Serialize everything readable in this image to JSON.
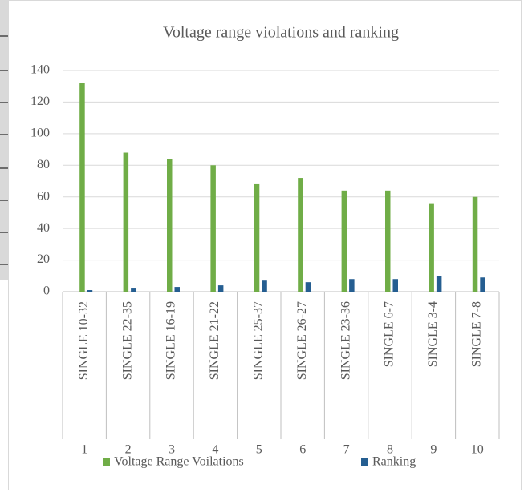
{
  "chart_data": {
    "type": "bar",
    "title": "Voltage range violations and ranking",
    "categories": [
      "SINGLE 10-32",
      "SINGLE 22-35",
      "SINGLE 16-19",
      "SINGLE 21-22",
      "SINGLE 25-37",
      "SINGLE 26-27",
      "SINGLE 23-36",
      "SINGLE 6-7",
      "SINGLE 3-4",
      "SINGLE 7-8"
    ],
    "outer_categories": [
      "1",
      "2",
      "3",
      "4",
      "5",
      "6",
      "7",
      "8",
      "9",
      "10"
    ],
    "series": [
      {
        "name": "Voltage Range Voilations",
        "color": "#70ad47",
        "values": [
          132,
          88,
          84,
          80,
          68,
          72,
          64,
          64,
          56,
          60
        ]
      },
      {
        "name": "Ranking",
        "color": "#255e91",
        "values": [
          1,
          2,
          3,
          4,
          7,
          6,
          8,
          8,
          10,
          9
        ]
      }
    ],
    "ylim": [
      0,
      140
    ],
    "yticks": [
      0,
      20,
      40,
      60,
      80,
      100,
      120,
      140
    ],
    "grid": true,
    "legend": "bottom"
  }
}
